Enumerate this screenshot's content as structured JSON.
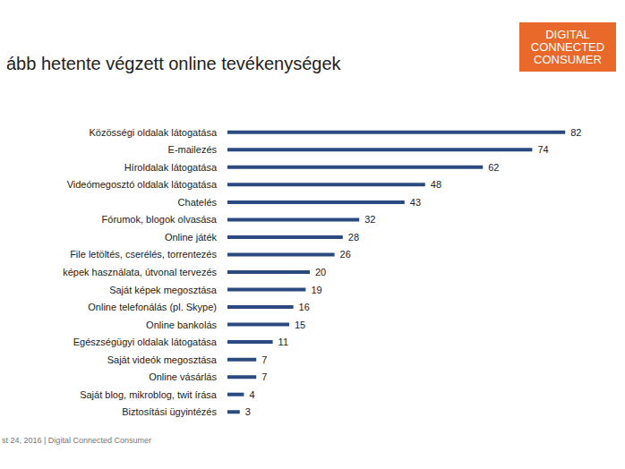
{
  "chart_data": {
    "type": "bar",
    "orientation": "horizontal",
    "title": "ább hetente végzett online tevékenységek",
    "categories": [
      "Közösségi oldalak látogatása",
      "E-mailezés",
      "Híroldalak látogatása",
      "Videómegosztó oldalak látogatása",
      "Chatelés",
      "Fórumok, blogok olvasása",
      "Online játék",
      "File letöltés, cserélés, torrentezés",
      "képek használata, útvonal tervezés",
      "Saját képek megosztása",
      "Online telefonálás (pl. Skype)",
      "Online bankolás",
      "Egészségügyi oldalak látogatása",
      "Saját videók megosztása",
      "Online vásárlás",
      "Saját blog, mikroblog, twit írása",
      "Biztosítási ügyintézés"
    ],
    "values": [
      82,
      74,
      62,
      48,
      43,
      32,
      28,
      26,
      20,
      19,
      16,
      15,
      11,
      7,
      7,
      4,
      3
    ],
    "color": "#2b4a80",
    "xlim": [
      0,
      90
    ],
    "data_labels": true,
    "tick_labels": "y",
    "grid": false,
    "annotations": [
      "DIGITAL CONNECTED CONSUMER",
      "st 24, 2016 | Digital Connected Consumer"
    ]
  }
}
